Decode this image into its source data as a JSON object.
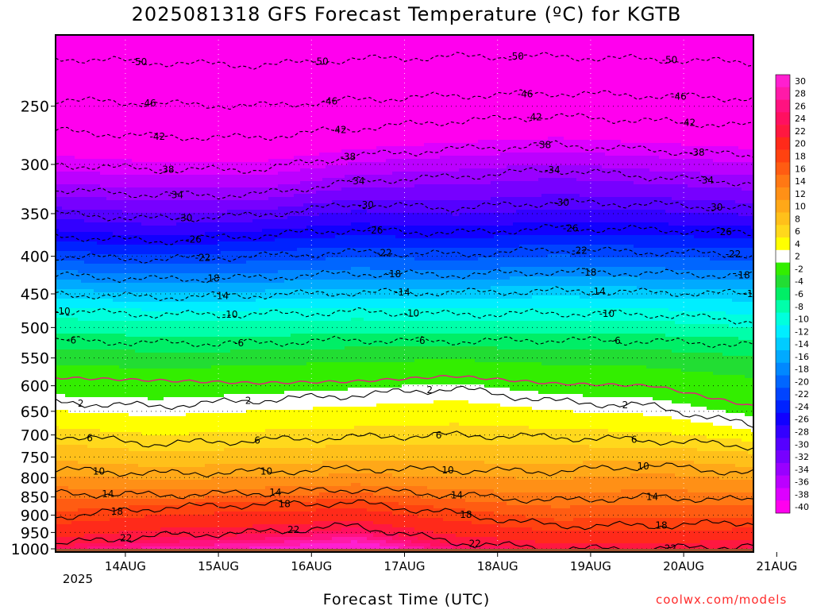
{
  "page": {
    "title": "2025081318 GFS Forecast Temperature (ºC) for KGTB",
    "watermark": "coolwx.com/models"
  },
  "chart_data": {
    "type": "heatmap",
    "title": "2025081318 GFS Forecast Temperature (ºC) for KGTB",
    "xlabel": "Forecast Time (UTC)",
    "ylabel": "",
    "x_ticks": [
      "14AUG",
      "15AUG",
      "16AUG",
      "17AUG",
      "18AUG",
      "19AUG",
      "20AUG",
      "21AUG"
    ],
    "x_tick_sublabel": "2025",
    "x_range_days": [
      0.25,
      7.75
    ],
    "y_ticks": [
      250,
      300,
      350,
      400,
      450,
      500,
      550,
      600,
      650,
      700,
      750,
      800,
      850,
      900,
      950,
      1000
    ],
    "y_range_hpa": [
      200,
      1010
    ],
    "y_scale": "log",
    "grid": true,
    "colorbar": {
      "labels": [
        30,
        28,
        26,
        24,
        22,
        20,
        18,
        16,
        14,
        12,
        10,
        8,
        6,
        4,
        2,
        -2,
        -4,
        -6,
        -8,
        -10,
        -12,
        -14,
        -16,
        -18,
        -20,
        -22,
        -24,
        -26,
        -28,
        -30,
        -32,
        -34,
        -36,
        -38,
        -40
      ],
      "colors": [
        "#ff1fd0",
        "#ff1aa8",
        "#ff1280",
        "#ff1060",
        "#ff1840",
        "#ff2a1a",
        "#ff4210",
        "#ff5c12",
        "#ff7814",
        "#ff9016",
        "#ffa818",
        "#ffc01a",
        "#ffd81c",
        "#ffff00",
        "#ffffff",
        "#33ee00",
        "#22dd33",
        "#00ee66",
        "#00ffaa",
        "#00ffdd",
        "#00eeff",
        "#00ccff",
        "#00aaff",
        "#0088ff",
        "#0066ff",
        "#0044ff",
        "#0022ff",
        "#1100ff",
        "#3300ff",
        "#5500ff",
        "#7700ff",
        "#9900ff",
        "#bb00ff",
        "#dd00ff",
        "#ff00ee"
      ]
    },
    "isotherms": [
      {
        "label": "-50",
        "p": [
          215,
          218,
          220,
          216,
          214,
          214,
          216,
          218
        ]
      },
      {
        "label": "-46",
        "p": [
          245,
          248,
          250,
          245,
          242,
          240,
          242,
          244
        ]
      },
      {
        "label": "-42",
        "p": [
          270,
          275,
          276,
          268,
          262,
          258,
          262,
          266
        ]
      },
      {
        "label": "-38",
        "p": [
          300,
          305,
          305,
          292,
          286,
          282,
          287,
          292
        ]
      },
      {
        "label": "-34",
        "p": [
          325,
          330,
          330,
          316,
          312,
          305,
          312,
          318
        ]
      },
      {
        "label": "-30",
        "p": [
          350,
          356,
          352,
          340,
          344,
          338,
          340,
          345
        ]
      },
      {
        "label": "-26",
        "p": [
          375,
          382,
          375,
          368,
          372,
          366,
          368,
          372
        ]
      },
      {
        "label": "-22",
        "p": [
          400,
          404,
          400,
          395,
          398,
          392,
          395,
          398
        ]
      },
      {
        "label": "-18",
        "p": [
          425,
          430,
          428,
          422,
          424,
          420,
          422,
          425
        ]
      },
      {
        "label": "-14",
        "p": [
          450,
          455,
          452,
          448,
          448,
          446,
          448,
          450
        ]
      },
      {
        "label": "-10",
        "p": [
          475,
          480,
          480,
          476,
          480,
          478,
          480,
          490
        ]
      },
      {
        "label": "-6",
        "p": [
          520,
          525,
          525,
          520,
          522,
          520,
          522,
          528
        ]
      },
      {
        "label": "2",
        "p": [
          632,
          640,
          628,
          618,
          605,
          630,
          640,
          680
        ]
      },
      {
        "label": "6",
        "p": [
          700,
          720,
          712,
          705,
          700,
          705,
          712,
          725
        ]
      },
      {
        "label": "10",
        "p": [
          780,
          790,
          786,
          778,
          782,
          785,
          770,
          790
        ]
      },
      {
        "label": "14",
        "p": [
          840,
          845,
          840,
          830,
          845,
          860,
          850,
          860
        ]
      },
      {
        "label": "18",
        "p": [
          905,
          880,
          870,
          866,
          895,
          930,
          930,
          920
        ]
      },
      {
        "label": "22",
        "p": [
          985,
          960,
          950,
          930,
          980,
          1000,
          1000,
          990
        ]
      }
    ],
    "freezing_line_hpa": [
      585,
      590,
      595,
      592,
      582,
      596,
      600,
      640
    ],
    "surface_pressure_hpa": 1000
  }
}
